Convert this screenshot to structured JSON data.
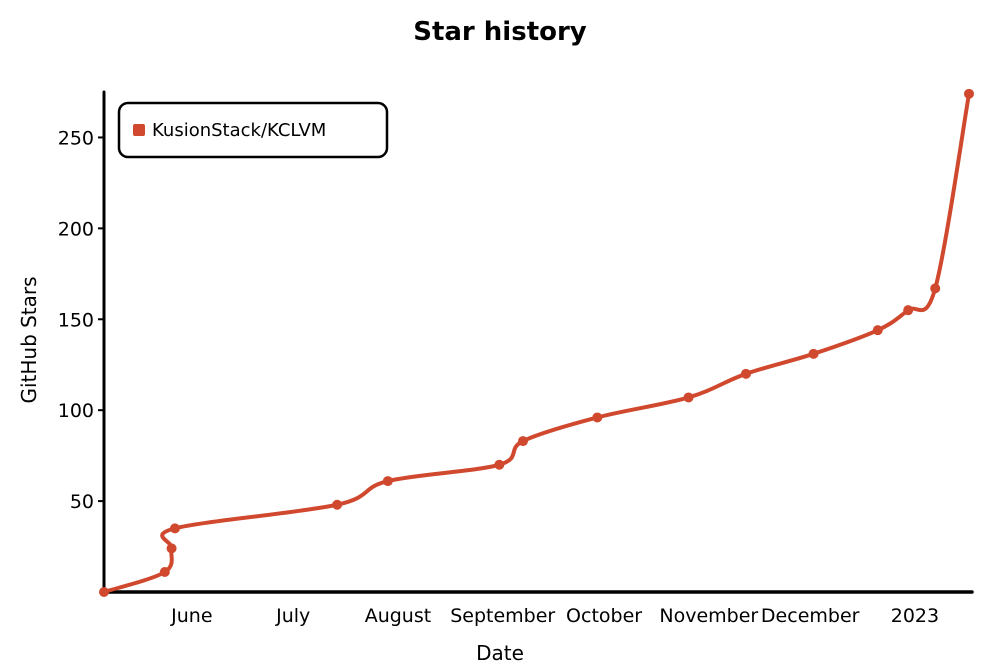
{
  "chart_data": {
    "type": "line",
    "title": "Star history",
    "xlabel": "Date",
    "ylabel": "GitHub Stars",
    "x_ticks": [
      "June",
      "July",
      "August",
      "September",
      "October",
      "November",
      "December",
      "2023"
    ],
    "y_ticks": [
      50,
      100,
      150,
      200,
      250
    ],
    "ylim": [
      0,
      275
    ],
    "xlim": [
      "2022-05-06",
      "2023-01-06"
    ],
    "legend_position": "top-left",
    "series": [
      {
        "name": "KusionStack/KCLVM",
        "color": "#d0492f",
        "points": [
          {
            "x": "2022-05-06",
            "y": 0
          },
          {
            "x": "2022-05-24",
            "y": 11
          },
          {
            "x": "2022-05-26",
            "y": 24
          },
          {
            "x": "2022-05-27",
            "y": 35
          },
          {
            "x": "2022-07-14",
            "y": 48
          },
          {
            "x": "2022-07-29",
            "y": 61
          },
          {
            "x": "2022-08-31",
            "y": 70
          },
          {
            "x": "2022-09-07",
            "y": 83
          },
          {
            "x": "2022-09-29",
            "y": 96
          },
          {
            "x": "2022-10-26",
            "y": 107
          },
          {
            "x": "2022-11-12",
            "y": 120
          },
          {
            "x": "2022-12-02",
            "y": 131
          },
          {
            "x": "2022-12-21",
            "y": 144
          },
          {
            "x": "2022-12-30",
            "y": 155
          },
          {
            "x": "2023-01-07",
            "y": 167
          },
          {
            "x": "2023-01-17",
            "y": 274
          }
        ]
      }
    ]
  }
}
